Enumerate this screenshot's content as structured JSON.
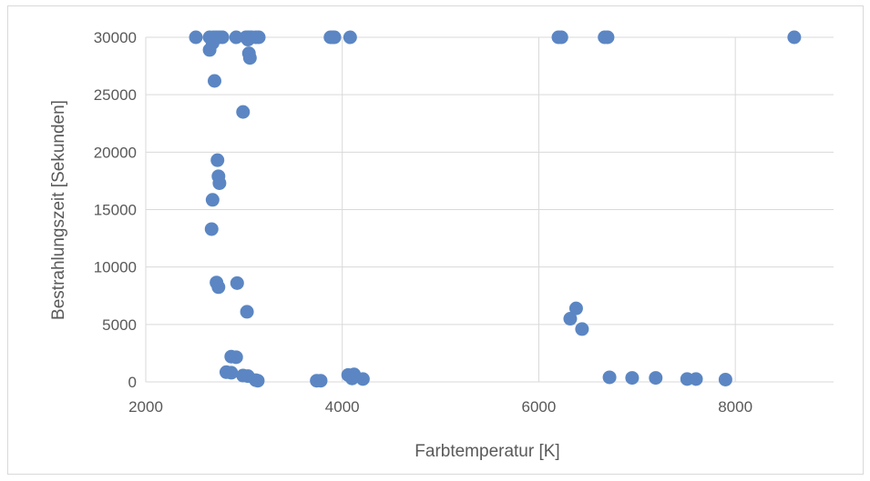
{
  "chart_data": {
    "type": "scatter",
    "title": "",
    "xlabel": "Farbtemperatur [K]",
    "ylabel": "Bestrahlungszeit [Sekunden]",
    "xlim": [
      2000,
      9000
    ],
    "ylim": [
      0,
      30000
    ],
    "x_ticks": [
      "2000",
      "4000",
      "6000",
      "8000"
    ],
    "y_ticks": [
      "0",
      "5000",
      "10000",
      "15000",
      "20000",
      "25000",
      "30000"
    ],
    "grid": true,
    "legend": "none",
    "marker_color": "#5b86c3",
    "gridline_color": "#d9d9d9",
    "points": [
      [
        2510,
        30000
      ],
      [
        2650,
        30000
      ],
      [
        2690,
        30000
      ],
      [
        2720,
        30000
      ],
      [
        2750,
        30000
      ],
      [
        2780,
        30000
      ],
      [
        2920,
        30000
      ],
      [
        3020,
        30000
      ],
      [
        3040,
        30000
      ],
      [
        3060,
        30000
      ],
      [
        3080,
        30000
      ],
      [
        3120,
        30000
      ],
      [
        3150,
        30000
      ],
      [
        3880,
        30000
      ],
      [
        3900,
        30000
      ],
      [
        3920,
        30000
      ],
      [
        4080,
        30000
      ],
      [
        6200,
        30000
      ],
      [
        6230,
        30000
      ],
      [
        6670,
        30000
      ],
      [
        6700,
        30000
      ],
      [
        8600,
        30000
      ],
      [
        2680,
        29500
      ],
      [
        2650,
        28900
      ],
      [
        3040,
        29800
      ],
      [
        3050,
        28600
      ],
      [
        3060,
        28200
      ],
      [
        2700,
        26200
      ],
      [
        2990,
        23500
      ],
      [
        2730,
        19300
      ],
      [
        2740,
        17900
      ],
      [
        2750,
        17300
      ],
      [
        2680,
        15850
      ],
      [
        2670,
        13300
      ],
      [
        2930,
        8600
      ],
      [
        2720,
        8650
      ],
      [
        2740,
        8250
      ],
      [
        3030,
        6100
      ],
      [
        6380,
        6400
      ],
      [
        6320,
        5500
      ],
      [
        6440,
        4600
      ],
      [
        2870,
        2200
      ],
      [
        2920,
        2150
      ],
      [
        2820,
        850
      ],
      [
        2870,
        800
      ],
      [
        2990,
        550
      ],
      [
        3040,
        500
      ],
      [
        3120,
        150
      ],
      [
        3140,
        100
      ],
      [
        3740,
        100
      ],
      [
        3780,
        100
      ],
      [
        4060,
        600
      ],
      [
        4120,
        650
      ],
      [
        4100,
        300
      ],
      [
        4210,
        250
      ],
      [
        6720,
        400
      ],
      [
        6950,
        350
      ],
      [
        7190,
        350
      ],
      [
        7510,
        250
      ],
      [
        7600,
        250
      ],
      [
        7900,
        200
      ]
    ]
  }
}
